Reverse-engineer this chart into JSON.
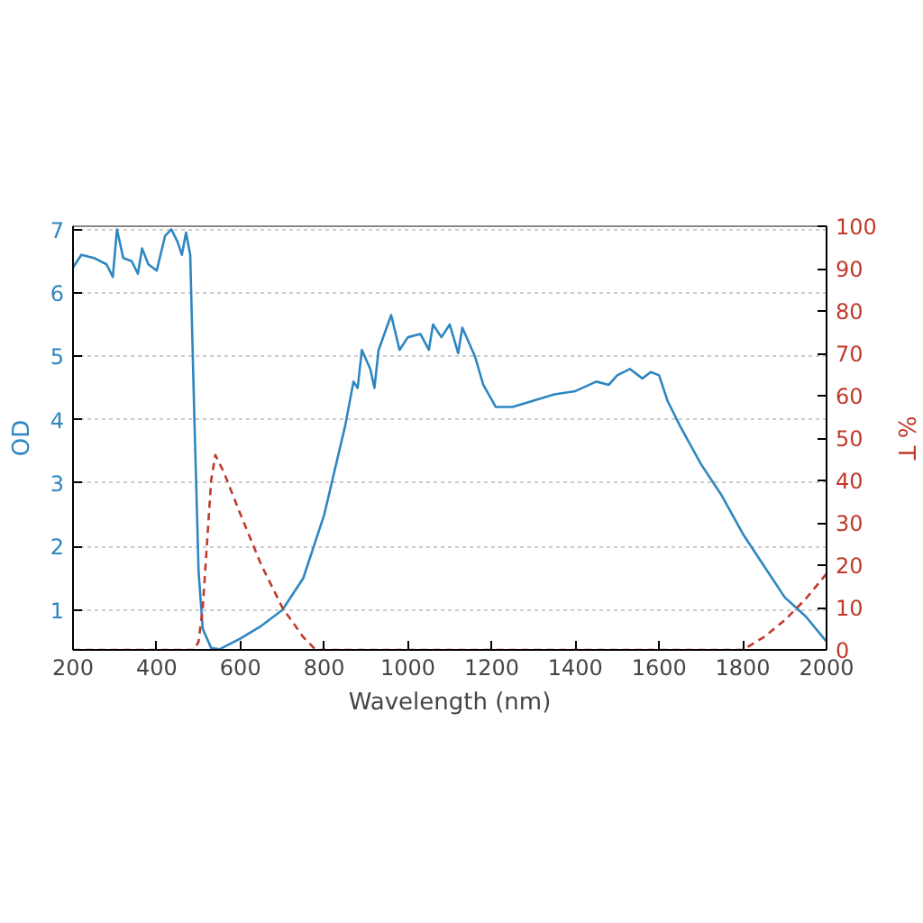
{
  "chart_data": {
    "type": "line",
    "xlabel": "Wavelength (nm)",
    "ylabel": "OD",
    "y2label": "% T",
    "xlim": [
      200,
      2000
    ],
    "xticks": [
      200,
      400,
      600,
      800,
      1000,
      1200,
      1400,
      1600,
      1800,
      2000
    ],
    "ylim": [
      0.37,
      7.05
    ],
    "yticks": [
      1,
      2,
      3,
      4,
      5,
      6,
      7
    ],
    "y2lim": [
      0,
      100
    ],
    "y2ticks": [
      0,
      10,
      20,
      30,
      40,
      50,
      60,
      70,
      80,
      90,
      100
    ],
    "grid": "y",
    "series": [
      {
        "color": "#2e86c1",
        "line_style": "solid",
        "x": [
          200,
          220,
          250,
          280,
          295,
          305,
          320,
          340,
          355,
          365,
          380,
          400,
          420,
          435,
          450,
          460,
          470,
          480,
          490,
          500,
          510,
          530,
          550,
          600,
          650,
          700,
          750,
          800,
          850,
          870,
          880,
          890,
          910,
          920,
          930,
          960,
          980,
          1000,
          1030,
          1050,
          1060,
          1080,
          1100,
          1120,
          1130,
          1160,
          1180,
          1210,
          1250,
          1300,
          1350,
          1400,
          1450,
          1480,
          1500,
          1530,
          1560,
          1580,
          1600,
          1620,
          1650,
          1700,
          1750,
          1800,
          1850,
          1900,
          1950,
          2000
        ],
        "values": [
          6.4,
          6.6,
          6.55,
          6.45,
          6.25,
          7.0,
          6.55,
          6.5,
          6.3,
          6.7,
          6.45,
          6.35,
          6.9,
          7.0,
          6.8,
          6.6,
          6.95,
          6.6,
          4.0,
          1.6,
          0.7,
          0.4,
          0.38,
          0.55,
          0.75,
          1.0,
          1.5,
          2.5,
          3.9,
          4.6,
          4.5,
          5.1,
          4.8,
          4.5,
          5.1,
          5.65,
          5.1,
          5.3,
          5.35,
          5.1,
          5.5,
          5.3,
          5.5,
          5.05,
          5.45,
          5.0,
          4.55,
          4.2,
          4.2,
          4.3,
          4.4,
          4.45,
          4.6,
          4.55,
          4.7,
          4.8,
          4.65,
          4.75,
          4.7,
          4.3,
          3.9,
          3.3,
          2.8,
          2.2,
          1.7,
          1.2,
          0.9,
          0.5
        ]
      },
      {
        "color": "#c0392b",
        "axis": "y2",
        "line_style": "dashed",
        "x": [
          200,
          490,
          500,
          510,
          520,
          530,
          540,
          560,
          600,
          650,
          700,
          750,
          780,
          1800,
          1850,
          1900,
          1950,
          2000
        ],
        "values": [
          0,
          0,
          2,
          10,
          25,
          40,
          46,
          42,
          32,
          20,
          10,
          3,
          0,
          0,
          3,
          7,
          12,
          18
        ]
      }
    ]
  }
}
